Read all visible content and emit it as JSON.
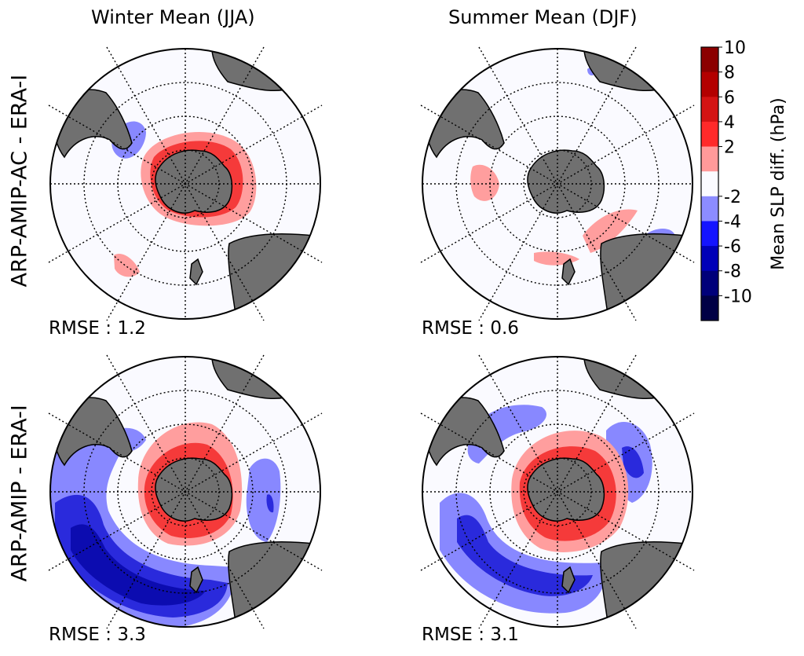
{
  "columns": [
    "Winter Mean (JJA)",
    "Summer Mean (DJF)"
  ],
  "rows": [
    "ARP-AMIP-AC - ERA-I",
    "ARP-AMIP - ERA-I"
  ],
  "panels": [
    {
      "rmse": "RMSE : 1.2"
    },
    {
      "rmse": "RMSE : 0.6"
    },
    {
      "rmse": "RMSE : 3.3"
    },
    {
      "rmse": "RMSE : 3.1"
    }
  ],
  "colorbar": {
    "label": "Mean SLP diff. (hPa)",
    "ticks": [
      "10",
      "8",
      "6",
      "4",
      "2",
      "-2",
      "-4",
      "-6",
      "-8",
      "-10"
    ],
    "colors": [
      "#8b0000",
      "#b30000",
      "#d41414",
      "#ff2a2a",
      "#ff9a9a",
      "#fbfbff",
      "#8c8cff",
      "#1414ff",
      "#0000b8",
      "#00007a",
      "#000045"
    ]
  },
  "palette": {
    "land": "#707070",
    "pos_light": "#ff9e9e",
    "pos_mid": "#f53a3a",
    "neg_light": "#8888ff",
    "neg_mid": "#2a2adc",
    "neg_dark": "#0c0cb0",
    "ocean": "#fafaff"
  }
}
